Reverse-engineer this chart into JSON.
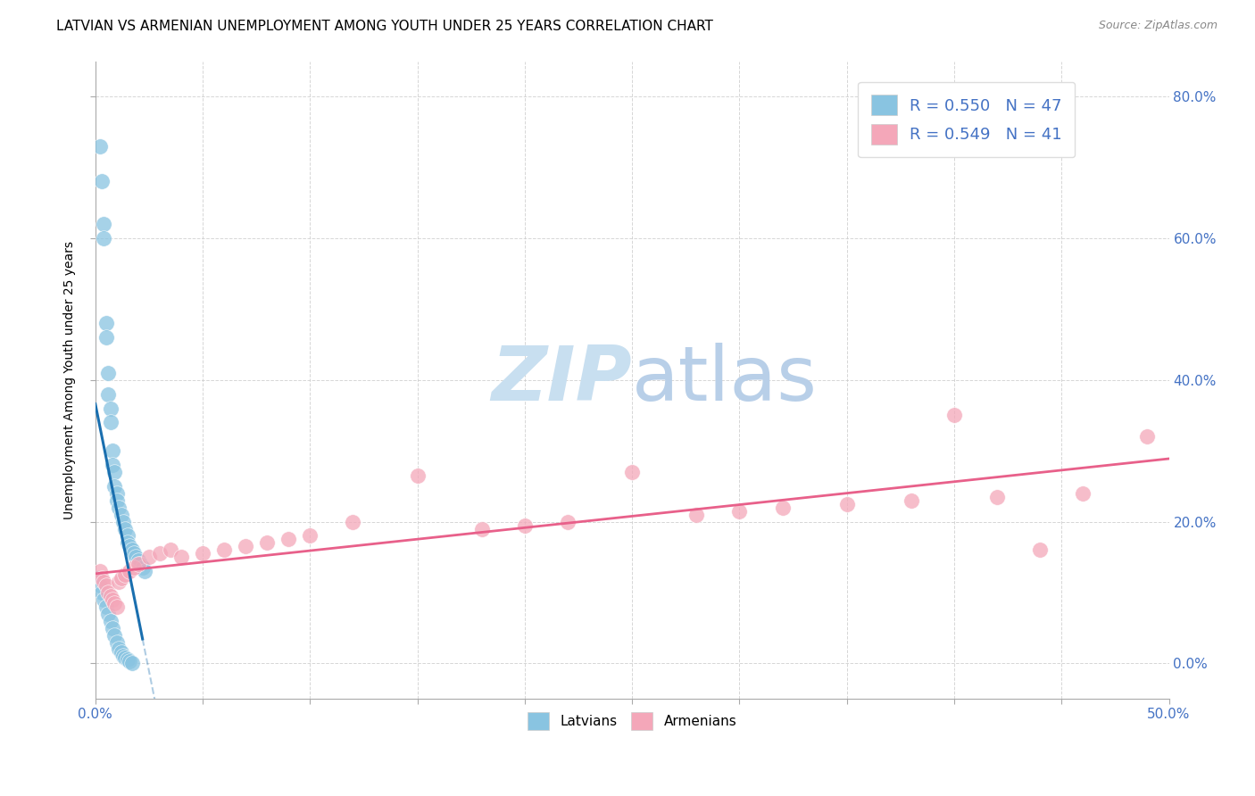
{
  "title": "LATVIAN VS ARMENIAN UNEMPLOYMENT AMONG YOUTH UNDER 25 YEARS CORRELATION CHART",
  "source": "Source: ZipAtlas.com",
  "ylabel": "Unemployment Among Youth under 25 years",
  "R_latvian": 0.55,
  "N_latvian": 47,
  "R_armenian": 0.549,
  "N_armenian": 41,
  "latvian_color": "#89c4e1",
  "armenian_color": "#f4a7b9",
  "latvian_line_color": "#1a6faf",
  "armenian_line_color": "#e8608a",
  "axis_label_color": "#4472c4",
  "watermark_color": "#c8dff0",
  "xlim": [
    0.0,
    0.5
  ],
  "ylim": [
    -0.05,
    0.85
  ],
  "yticks": [
    0.0,
    0.2,
    0.4,
    0.6,
    0.8
  ],
  "latvian_x": [
    0.002,
    0.003,
    0.004,
    0.004,
    0.005,
    0.005,
    0.006,
    0.006,
    0.007,
    0.007,
    0.008,
    0.008,
    0.009,
    0.009,
    0.01,
    0.01,
    0.011,
    0.012,
    0.013,
    0.014,
    0.015,
    0.015,
    0.016,
    0.017,
    0.018,
    0.019,
    0.02,
    0.021,
    0.022,
    0.023,
    0.001,
    0.002,
    0.003,
    0.004,
    0.005,
    0.006,
    0.007,
    0.008,
    0.009,
    0.01,
    0.011,
    0.012,
    0.013,
    0.014,
    0.015,
    0.016,
    0.017
  ],
  "latvian_y": [
    0.73,
    0.68,
    0.62,
    0.6,
    0.48,
    0.46,
    0.41,
    0.38,
    0.36,
    0.34,
    0.3,
    0.28,
    0.27,
    0.25,
    0.24,
    0.23,
    0.22,
    0.21,
    0.2,
    0.19,
    0.18,
    0.17,
    0.165,
    0.16,
    0.155,
    0.15,
    0.145,
    0.14,
    0.135,
    0.13,
    0.12,
    0.11,
    0.1,
    0.09,
    0.08,
    0.07,
    0.06,
    0.05,
    0.04,
    0.03,
    0.02,
    0.015,
    0.01,
    0.008,
    0.005,
    0.003,
    0.001
  ],
  "armenian_x": [
    0.002,
    0.003,
    0.004,
    0.005,
    0.006,
    0.007,
    0.008,
    0.009,
    0.01,
    0.011,
    0.012,
    0.014,
    0.016,
    0.018,
    0.02,
    0.025,
    0.03,
    0.035,
    0.04,
    0.05,
    0.06,
    0.07,
    0.08,
    0.09,
    0.1,
    0.12,
    0.15,
    0.18,
    0.2,
    0.22,
    0.25,
    0.28,
    0.3,
    0.32,
    0.35,
    0.38,
    0.4,
    0.42,
    0.44,
    0.46,
    0.49
  ],
  "armenian_y": [
    0.13,
    0.12,
    0.115,
    0.11,
    0.1,
    0.095,
    0.09,
    0.085,
    0.08,
    0.115,
    0.12,
    0.125,
    0.13,
    0.135,
    0.14,
    0.15,
    0.155,
    0.16,
    0.15,
    0.155,
    0.16,
    0.165,
    0.17,
    0.175,
    0.18,
    0.2,
    0.265,
    0.19,
    0.195,
    0.2,
    0.27,
    0.21,
    0.215,
    0.22,
    0.225,
    0.23,
    0.35,
    0.235,
    0.16,
    0.24,
    0.32
  ]
}
